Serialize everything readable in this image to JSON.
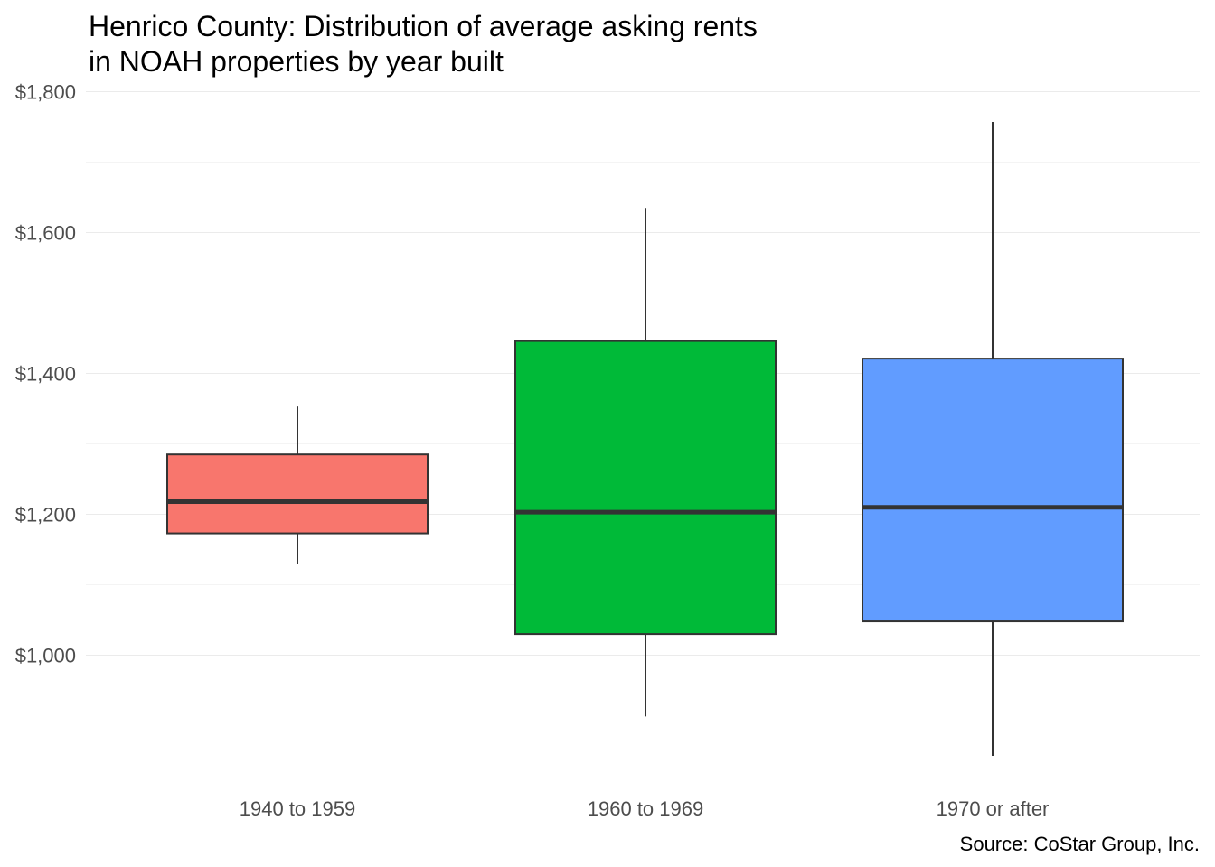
{
  "chart_data": {
    "type": "boxplot",
    "title": [
      "Henrico County: Distribution of average asking rents",
      "in NOAH properties by year built"
    ],
    "caption": "Source: CoStar Group, Inc.",
    "xlabel": "",
    "ylabel": "",
    "ylim": [
      830,
      1800
    ],
    "y_ticks": [
      {
        "value": 1000,
        "label": "$1,000"
      },
      {
        "value": 1200,
        "label": "$1,200"
      },
      {
        "value": 1400,
        "label": "$1,400"
      },
      {
        "value": 1600,
        "label": "$1,600"
      },
      {
        "value": 1800,
        "label": "$1,800"
      }
    ],
    "grid": true,
    "legend": "none",
    "categories": [
      "1940 to 1959",
      "1960 to 1969",
      "1970 or after"
    ],
    "boxes": [
      {
        "category": "1940 to 1959",
        "min": 1130,
        "q1": 1173,
        "median": 1218,
        "q3": 1285,
        "max": 1353,
        "color": "#F8766D"
      },
      {
        "category": "1960 to 1969",
        "min": 913,
        "q1": 1030,
        "median": 1203,
        "q3": 1446,
        "max": 1635,
        "color": "#00BA38"
      },
      {
        "category": "1970 or after",
        "min": 857,
        "q1": 1048,
        "median": 1210,
        "q3": 1421,
        "max": 1757,
        "color": "#619CFF"
      }
    ]
  }
}
